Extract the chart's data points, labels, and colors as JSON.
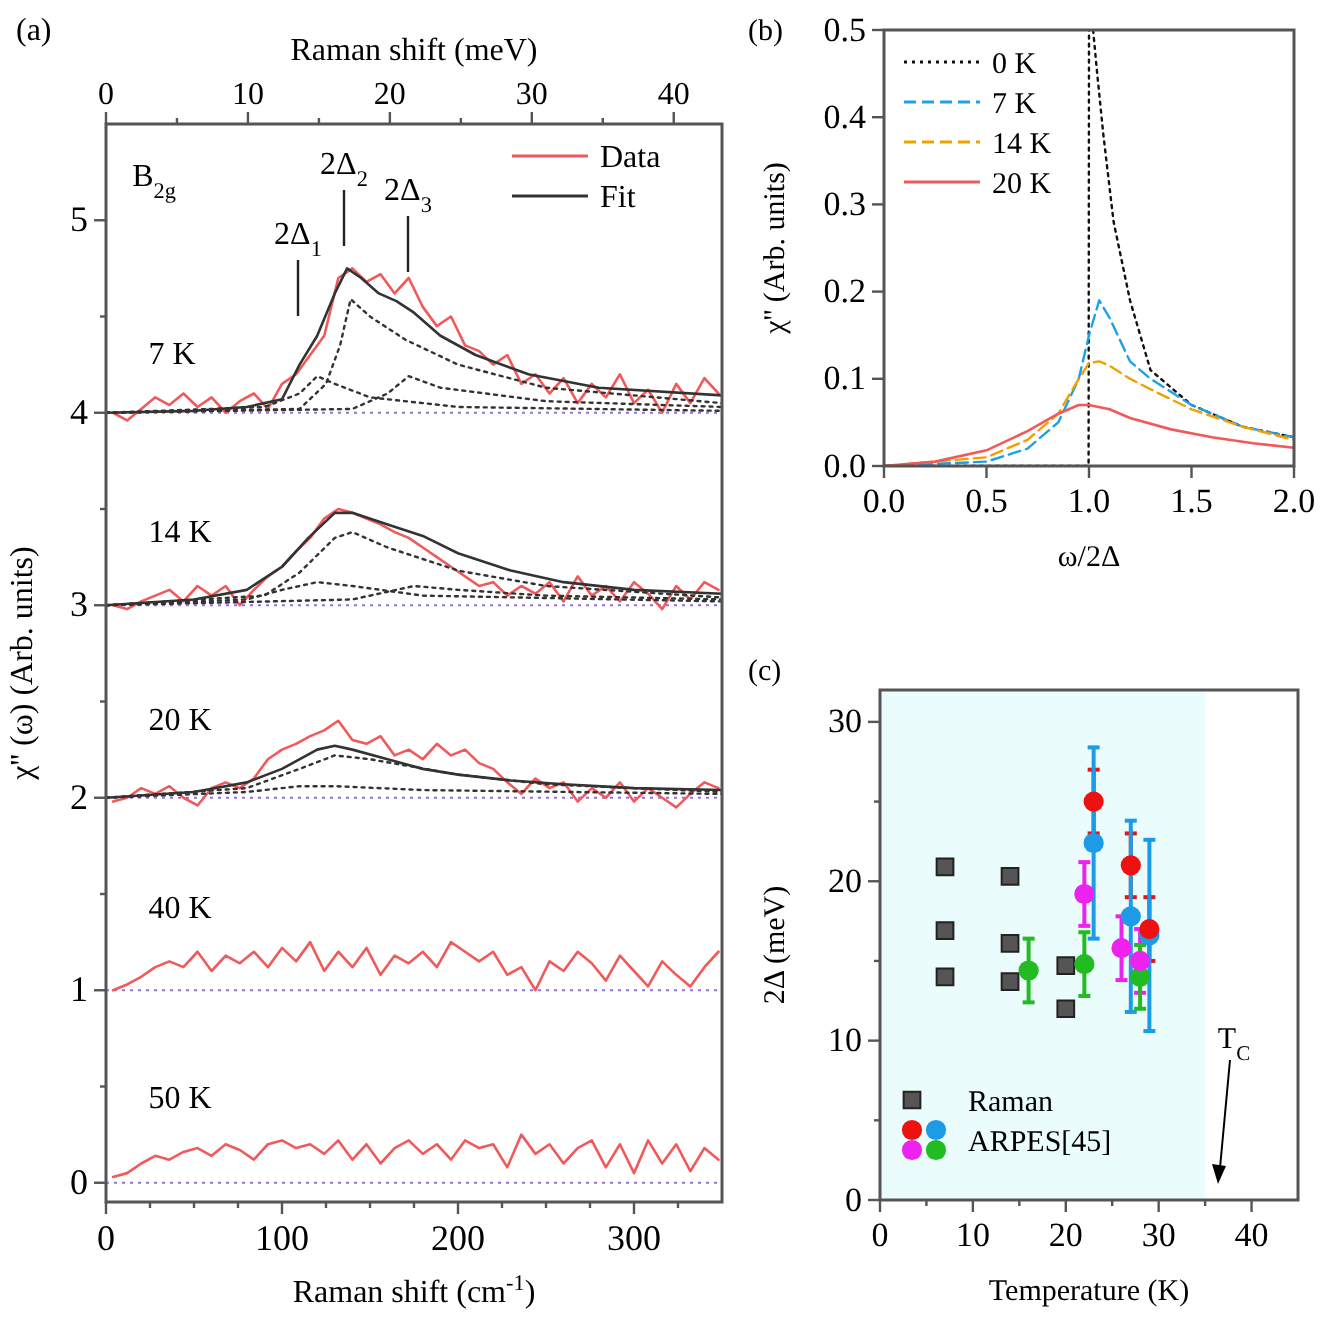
{
  "chart_data": [
    {
      "type": "line",
      "title": "(a)",
      "xlabel": "Raman shift (cm$^{-1}$)",
      "ylabel": "χ'' (ω) (Arb. units)",
      "x2label": "Raman shift (meV)",
      "xlim": [
        0,
        350
      ],
      "ylim": [
        -0.1,
        5.5
      ],
      "x2lim": [
        0,
        43.4
      ],
      "xticks": [
        0,
        {
          "value": 25,
          "label": null
        },
        {
          "value": 50,
          "label": null
        },
        {
          "value": 75,
          "label": null
        },
        100,
        {
          "value": 125,
          "label": null
        },
        {
          "value": 150,
          "label": null
        },
        {
          "value": 175,
          "label": null
        },
        200,
        {
          "value": 225,
          "label": null
        },
        {
          "value": 250,
          "label": null
        },
        {
          "value": 275,
          "label": null
        },
        300,
        {
          "value": 325,
          "label": null
        }
      ],
      "x2ticks": [
        0,
        {
          "value": 5,
          "label": null
        },
        10,
        {
          "value": 15,
          "label": null
        },
        20,
        {
          "value": 25,
          "label": null
        },
        30,
        {
          "value": 35,
          "label": null
        },
        40
      ],
      "yticks": [
        0,
        {
          "value": 0.5,
          "label": null
        },
        1,
        {
          "value": 1.5,
          "label": null
        },
        2,
        {
          "value": 2.5,
          "label": null
        },
        3,
        {
          "value": 3.5,
          "label": null
        },
        4,
        {
          "value": 4.5,
          "label": null
        },
        5
      ],
      "legend": "top right",
      "x": [
        4,
        12,
        20,
        28,
        36,
        44,
        52,
        60,
        68,
        76,
        84,
        92,
        100,
        108,
        116,
        124,
        132,
        140,
        148,
        156,
        164,
        172,
        180,
        188,
        196,
        204,
        212,
        220,
        228,
        236,
        244,
        252,
        260,
        268,
        276,
        284,
        292,
        300,
        308,
        316,
        324,
        332,
        340,
        348
      ],
      "ref_lines": [
        {
          "axis": "y",
          "value": 0,
          "color": "#9370db",
          "line_style": "dotted"
        },
        {
          "axis": "y",
          "value": 1,
          "color": "#9370db",
          "line_style": "dotted"
        },
        {
          "axis": "y",
          "value": 2,
          "color": "#9370db",
          "line_style": "dotted"
        },
        {
          "axis": "y",
          "value": 3,
          "color": "#9370db",
          "line_style": "dotted"
        },
        {
          "axis": "y",
          "value": 4,
          "color": "#9370db",
          "line_style": "dotted"
        }
      ],
      "series": [
        {
          "name": "Data",
          "color": "#f05a5a",
          "line_style": "solid",
          "values": [
            4.0,
            3.96,
            4.02,
            4.08,
            4.04,
            4.1,
            4.03,
            4.08,
            4.0,
            4.06,
            4.1,
            4.02,
            4.15,
            4.2,
            4.3,
            4.4,
            4.7,
            4.75,
            4.68,
            4.72,
            4.62,
            4.7,
            4.55,
            4.45,
            4.5,
            4.35,
            4.32,
            4.25,
            4.3,
            4.15,
            4.2,
            4.1,
            4.18,
            4.05,
            4.15,
            4.08,
            4.2,
            4.05,
            4.12,
            4.0,
            4.15,
            4.05,
            4.18,
            4.1
          ]
        },
        {
          "color": "#f05a5a",
          "line_style": "solid",
          "values": [
            3.0,
            2.98,
            3.02,
            3.05,
            3.08,
            3.02,
            3.1,
            3.05,
            3.1,
            3.0,
            3.08,
            3.15,
            3.2,
            3.28,
            3.35,
            3.45,
            3.5,
            3.48,
            3.45,
            3.42,
            3.38,
            3.35,
            3.3,
            3.25,
            3.2,
            3.15,
            3.1,
            3.12,
            3.05,
            3.1,
            3.06,
            3.12,
            3.02,
            3.15,
            3.05,
            3.1,
            3.02,
            3.12,
            3.06,
            2.98,
            3.1,
            3.03,
            3.12,
            3.08
          ]
        },
        {
          "color": "#f05a5a",
          "line_style": "solid",
          "values": [
            1.98,
            2.0,
            2.05,
            2.02,
            2.06,
            2.0,
            1.96,
            2.05,
            2.08,
            2.05,
            2.1,
            2.2,
            2.25,
            2.28,
            2.32,
            2.35,
            2.4,
            2.3,
            2.28,
            2.32,
            2.22,
            2.25,
            2.2,
            2.28,
            2.22,
            2.25,
            2.18,
            2.15,
            2.08,
            2.02,
            2.1,
            2.05,
            2.08,
            1.98,
            2.05,
            2.0,
            2.08,
            1.98,
            2.05,
            2.0,
            1.95,
            2.02,
            2.08,
            2.05
          ]
        },
        {
          "color": "#f05a5a",
          "line_style": "solid",
          "values": [
            1.0,
            1.03,
            1.07,
            1.12,
            1.15,
            1.12,
            1.2,
            1.1,
            1.18,
            1.14,
            1.2,
            1.12,
            1.22,
            1.15,
            1.25,
            1.1,
            1.2,
            1.12,
            1.22,
            1.08,
            1.18,
            1.14,
            1.2,
            1.12,
            1.25,
            1.2,
            1.15,
            1.2,
            1.08,
            1.12,
            1.0,
            1.15,
            1.1,
            1.2,
            1.14,
            1.05,
            1.18,
            1.1,
            1.02,
            1.15,
            1.08,
            1.02,
            1.12,
            1.2
          ]
        },
        {
          "color": "#f05a5a",
          "line_style": "solid",
          "values": [
            0.03,
            0.05,
            0.1,
            0.14,
            0.12,
            0.16,
            0.18,
            0.14,
            0.2,
            0.17,
            0.12,
            0.2,
            0.22,
            0.18,
            0.2,
            0.15,
            0.22,
            0.12,
            0.2,
            0.1,
            0.18,
            0.22,
            0.15,
            0.2,
            0.12,
            0.22,
            0.18,
            0.2,
            0.08,
            0.25,
            0.15,
            0.2,
            0.1,
            0.18,
            0.22,
            0.08,
            0.2,
            0.05,
            0.22,
            0.1,
            0.2,
            0.06,
            0.18,
            0.12
          ]
        },
        {
          "color": "#333333",
          "line_style": "dotted",
          "x": [
            0,
            90,
            110,
            120,
            130,
            150,
            200,
            350
          ],
          "values": [
            4,
            4.03,
            4.1,
            4.19,
            4.15,
            4.08,
            4.03,
            4.01
          ]
        },
        {
          "color": "#333333",
          "line_style": "dotted",
          "x": [
            0,
            110,
            125,
            133,
            139,
            150,
            170,
            200,
            250,
            350
          ],
          "values": [
            4,
            4.02,
            4.15,
            4.35,
            4.59,
            4.5,
            4.38,
            4.25,
            4.13,
            4.05
          ]
        },
        {
          "color": "#333333",
          "line_style": "dotted",
          "x": [
            0,
            140,
            160,
            172,
            190,
            250,
            350
          ],
          "values": [
            4,
            4.02,
            4.1,
            4.19,
            4.13,
            4.06,
            4.03
          ]
        },
        {
          "color": "#333333",
          "line_style": "dotted",
          "x": [
            0,
            80,
            100,
            120,
            140,
            180,
            350
          ],
          "values": [
            3,
            3.03,
            3.08,
            3.12,
            3.1,
            3.05,
            3.02
          ]
        },
        {
          "color": "#333333",
          "line_style": "dotted",
          "x": [
            0,
            90,
            110,
            130,
            140,
            160,
            200,
            250,
            350
          ],
          "values": [
            3,
            3.05,
            3.17,
            3.35,
            3.38,
            3.3,
            3.18,
            3.1,
            3.04
          ]
        },
        {
          "color": "#333333",
          "line_style": "dotted",
          "x": [
            0,
            140,
            160,
            175,
            200,
            250,
            350
          ],
          "values": [
            3,
            3.03,
            3.07,
            3.1,
            3.08,
            3.05,
            3.03
          ]
        },
        {
          "color": "#333333",
          "line_style": "dotted",
          "x": [
            0,
            80,
            110,
            130,
            150,
            200,
            250,
            350
          ],
          "values": [
            2,
            2.05,
            2.15,
            2.22,
            2.2,
            2.12,
            2.07,
            2.03
          ]
        },
        {
          "color": "#333333",
          "line_style": "dotted",
          "x": [
            0,
            80,
            110,
            130,
            180,
            350
          ],
          "values": [
            2,
            2.03,
            2.06,
            2.06,
            2.04,
            2.02
          ]
        },
        {
          "name": "Fit",
          "color": "#333333",
          "line_style": "solid",
          "x": [
            0,
            50,
            80,
            100,
            110,
            120,
            130,
            137,
            145,
            155,
            165,
            175,
            190,
            210,
            240,
            280,
            350
          ],
          "values": [
            4,
            4.01,
            4.03,
            4.07,
            4.25,
            4.4,
            4.62,
            4.75,
            4.7,
            4.62,
            4.58,
            4.52,
            4.4,
            4.3,
            4.2,
            4.13,
            4.09
          ]
        },
        {
          "color": "#333333",
          "line_style": "solid",
          "x": [
            0,
            50,
            80,
            100,
            115,
            130,
            140,
            160,
            180,
            200,
            230,
            260,
            300,
            350
          ],
          "values": [
            3,
            3.03,
            3.08,
            3.2,
            3.35,
            3.48,
            3.48,
            3.42,
            3.36,
            3.27,
            3.18,
            3.12,
            3.08,
            3.06
          ]
        },
        {
          "color": "#333333",
          "line_style": "solid",
          "x": [
            0,
            50,
            80,
            100,
            120,
            130,
            140,
            160,
            180,
            200,
            230,
            260,
            300,
            350
          ],
          "values": [
            2,
            2.03,
            2.08,
            2.15,
            2.25,
            2.27,
            2.25,
            2.2,
            2.15,
            2.12,
            2.09,
            2.07,
            2.05,
            2.04
          ]
        }
      ],
      "annotations": [
        "B$_{2g}$",
        "7 K",
        "14 K",
        "20 K",
        "40 K",
        "50 K",
        "2Δ$_{1}$",
        "2Δ$_{2}$",
        "2Δ$_{3}$"
      ]
    },
    {
      "type": "line",
      "title": "(b)",
      "xlabel": "ω/2Δ",
      "ylabel": "χ'' (Arb. units)",
      "xlim": [
        0,
        2
      ],
      "ylim": [
        0,
        0.5
      ],
      "xticks": [
        {
          "value": 0,
          "label": "0.0"
        },
        0.5,
        {
          "value": 1,
          "label": "1.0"
        },
        1.5,
        {
          "value": 2,
          "label": "2.0"
        }
      ],
      "yticks": [
        {
          "value": 0,
          "label": "0.0"
        },
        0.1,
        0.2,
        0.3,
        0.4,
        0.5
      ],
      "legend": "top left",
      "series": [
        {
          "name": "0 K",
          "color": "#111111",
          "line_style": "dotted",
          "x": [
            0,
            0.5,
            0.998,
            1.0,
            1.01,
            1.02,
            1.04,
            1.07,
            1.12,
            1.2,
            1.3,
            1.5,
            1.75,
            2.0
          ],
          "values": [
            0,
            0,
            0,
            0.5,
            null,
            0.5,
            0.45,
            0.38,
            0.28,
            0.19,
            0.11,
            0.07,
            0.045,
            0.033
          ]
        },
        {
          "name": "7 K",
          "color": "#1ea0e6",
          "line_style": "dashed",
          "x": [
            0,
            0.5,
            0.7,
            0.85,
            0.95,
            1.0,
            1.05,
            1.1,
            1.2,
            1.3,
            1.5,
            1.75,
            2.0
          ],
          "values": [
            0,
            0.005,
            0.02,
            0.05,
            0.1,
            0.15,
            0.19,
            0.17,
            0.12,
            0.1,
            0.07,
            0.045,
            0.033
          ]
        },
        {
          "name": "14 K",
          "color": "#f0a000",
          "line_style": "dashed",
          "x": [
            0,
            0.5,
            0.7,
            0.85,
            0.95,
            1.0,
            1.05,
            1.1,
            1.2,
            1.3,
            1.5,
            1.75,
            2.0
          ],
          "values": [
            0,
            0.01,
            0.03,
            0.06,
            0.1,
            0.118,
            0.12,
            0.115,
            0.1,
            0.088,
            0.065,
            0.045,
            0.03
          ]
        },
        {
          "name": "20 K",
          "color": "#f05a5a",
          "line_style": "solid",
          "x": [
            0,
            0.25,
            0.5,
            0.7,
            0.85,
            0.95,
            1.0,
            1.1,
            1.2,
            1.4,
            1.6,
            1.8,
            2.0
          ],
          "values": [
            0,
            0.005,
            0.018,
            0.04,
            0.06,
            0.07,
            0.07,
            0.065,
            0.055,
            0.042,
            0.033,
            0.026,
            0.021
          ]
        }
      ]
    },
    {
      "type": "scatter",
      "title": "(c)",
      "xlabel": "Temperature (K)",
      "ylabel": "2Δ (meV)",
      "xlim": [
        0,
        45
      ],
      "ylim": [
        0,
        32
      ],
      "xticks": [
        0,
        {
          "value": 5,
          "label": null
        },
        10,
        {
          "value": 15,
          "label": null
        },
        20,
        {
          "value": 25,
          "label": null
        },
        30,
        {
          "value": 35,
          "label": null
        },
        40
      ],
      "yticks": [
        0,
        {
          "value": 5,
          "label": null
        },
        10,
        {
          "value": 15,
          "label": null
        },
        20,
        {
          "value": 25,
          "label": null
        },
        30
      ],
      "legend": "bottom left",
      "bands": [
        {
          "axis": "x",
          "from": 0,
          "to": 35,
          "color": "#ebfcfc"
        }
      ],
      "series": [
        {
          "name": "Raman",
          "color": "#555555",
          "marker": "square",
          "x": [
            7,
            7,
            7,
            14,
            14,
            14,
            20,
            20
          ],
          "values": [
            20.9,
            16.9,
            14,
            20.3,
            16.1,
            13.7,
            14.7,
            12
          ]
        },
        {
          "name": "ARPES[45]",
          "marker": "circle",
          "x": [
            23,
            27,
            29,
            23,
            27,
            29,
            22,
            26,
            28,
            16,
            22,
            28
          ],
          "values": [
            25,
            21,
            17,
            22.4,
            17.8,
            16.6,
            19.2,
            15.8,
            15,
            14.4,
            14.8,
            14
          ],
          "errors": [
            2,
            2,
            2,
            6,
            6,
            6,
            2,
            2,
            2,
            2,
            2,
            2
          ],
          "colors": [
            "#ee1111",
            "#ee1111",
            "#ee1111",
            "#1e9be6",
            "#1e9be6",
            "#1e9be6",
            "#ee22ee",
            "#ee22ee",
            "#ee22ee",
            "#22bb22",
            "#22bb22",
            "#22bb22"
          ]
        }
      ],
      "annotations": [
        "T$_{C}$"
      ]
    }
  ]
}
